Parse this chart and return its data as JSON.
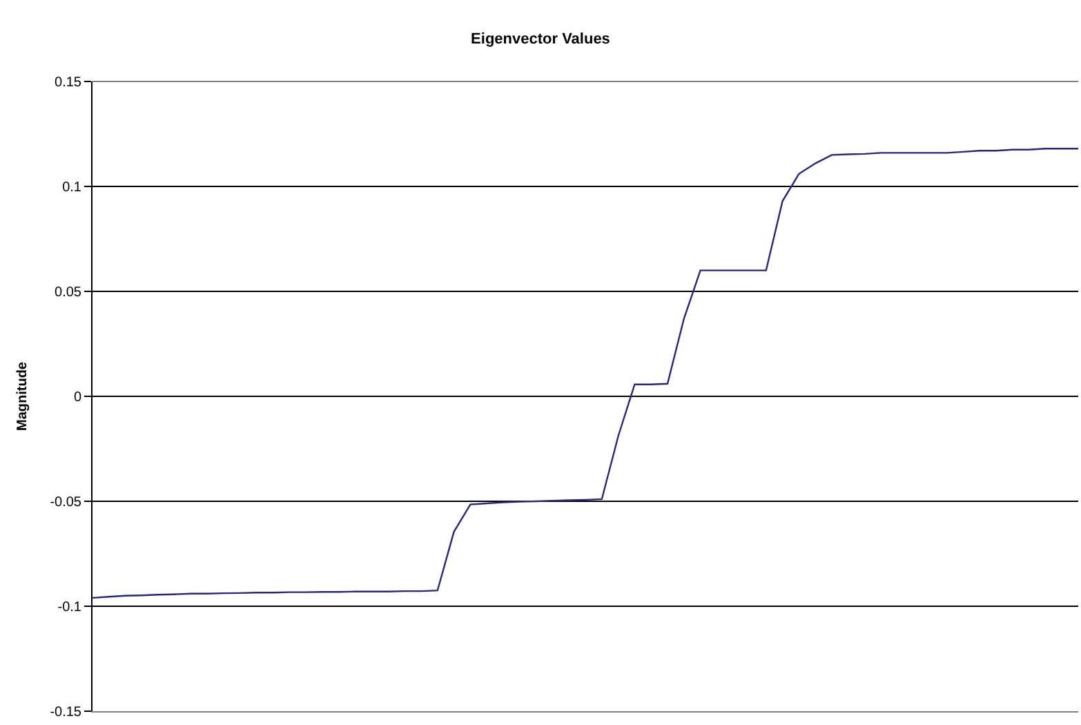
{
  "chart_data": {
    "type": "line",
    "title": "Eigenvector Values",
    "ylabel": "Magnitude",
    "categories": [
      null,
      null,
      null,
      null,
      null,
      null,
      null,
      null,
      null,
      null,
      null,
      null,
      null,
      null,
      null,
      null,
      null,
      null,
      null,
      null,
      null,
      null,
      null,
      null,
      null,
      null,
      null,
      null,
      null,
      null,
      null,
      null,
      null,
      null,
      null,
      null,
      null,
      null,
      null,
      null,
      null,
      null,
      null,
      null,
      null,
      null,
      null,
      null,
      null,
      null,
      null,
      null,
      null,
      null,
      null,
      null,
      null,
      null,
      null,
      null,
      null
    ],
    "series": [
      {
        "color": "#26267a",
        "values": [
          -0.096,
          -0.0955,
          -0.095,
          -0.0948,
          -0.0945,
          -0.0943,
          -0.094,
          -0.094,
          -0.0938,
          -0.0937,
          -0.0935,
          -0.0935,
          -0.0933,
          -0.0933,
          -0.0932,
          -0.0932,
          -0.093,
          -0.093,
          -0.093,
          -0.0928,
          -0.0928,
          -0.0925,
          -0.0645,
          -0.0515,
          -0.051,
          -0.0505,
          -0.0502,
          -0.05,
          -0.0497,
          -0.0495,
          -0.0493,
          -0.049,
          -0.019,
          0.0057,
          0.0057,
          0.006,
          0.037,
          0.06,
          0.06,
          0.06,
          0.06,
          0.06,
          0.093,
          0.106,
          0.111,
          0.115,
          0.1153,
          0.1155,
          0.116,
          0.116,
          0.116,
          0.116,
          0.116,
          0.1165,
          0.117,
          0.117,
          0.1175,
          0.1175,
          0.118,
          0.118,
          0.118
        ]
      }
    ],
    "ylim": [
      -0.15,
      0.15
    ],
    "yticks": [
      -0.15,
      -0.1,
      -0.05,
      0,
      0.05,
      0.1,
      0.15
    ],
    "grid": "y",
    "tick_labels": "y",
    "marker": "none",
    "line_style": "solid"
  }
}
